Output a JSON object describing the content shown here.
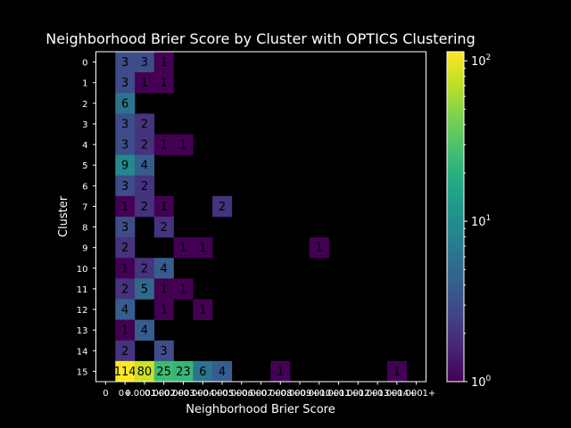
{
  "chart_data": {
    "type": "heatmap",
    "title": "Neighborhood Brier Score by Cluster with OPTICS Clustering",
    "xlabel": "Neighborhood Brier Score",
    "ylabel": "Cluster",
    "x_tick_labels": [
      "0",
      "0+",
      "0.0001+",
      "0.0002+",
      "0.0003+",
      "0.0004+",
      "0.0005+",
      "0.0006+",
      "0.0007+",
      "0.0008+",
      "0.0009+",
      "0.0010+",
      "0.0011+",
      "0.0012+",
      "0.0013+",
      "0.0014+",
      "0.0001+"
    ],
    "y_categories": [
      "0",
      "1",
      "2",
      "3",
      "4",
      "5",
      "6",
      "7",
      "8",
      "9",
      "10",
      "11",
      "12",
      "13",
      "14",
      "15"
    ],
    "cells": [
      {
        "row": 0,
        "col": 1,
        "value": 3
      },
      {
        "row": 0,
        "col": 2,
        "value": 3
      },
      {
        "row": 0,
        "col": 3,
        "value": 1
      },
      {
        "row": 1,
        "col": 1,
        "value": 3
      },
      {
        "row": 1,
        "col": 2,
        "value": 1
      },
      {
        "row": 1,
        "col": 3,
        "value": 1
      },
      {
        "row": 2,
        "col": 1,
        "value": 6
      },
      {
        "row": 3,
        "col": 1,
        "value": 3
      },
      {
        "row": 3,
        "col": 2,
        "value": 2
      },
      {
        "row": 4,
        "col": 1,
        "value": 3
      },
      {
        "row": 4,
        "col": 2,
        "value": 2
      },
      {
        "row": 4,
        "col": 3,
        "value": 1
      },
      {
        "row": 4,
        "col": 4,
        "value": 1
      },
      {
        "row": 5,
        "col": 1,
        "value": 9
      },
      {
        "row": 5,
        "col": 2,
        "value": 4
      },
      {
        "row": 6,
        "col": 1,
        "value": 3
      },
      {
        "row": 6,
        "col": 2,
        "value": 2
      },
      {
        "row": 7,
        "col": 1,
        "value": 1
      },
      {
        "row": 7,
        "col": 2,
        "value": 2
      },
      {
        "row": 7,
        "col": 3,
        "value": 1
      },
      {
        "row": 7,
        "col": 6,
        "value": 2
      },
      {
        "row": 8,
        "col": 1,
        "value": 3
      },
      {
        "row": 8,
        "col": 3,
        "value": 2
      },
      {
        "row": 9,
        "col": 1,
        "value": 2
      },
      {
        "row": 9,
        "col": 4,
        "value": 1
      },
      {
        "row": 9,
        "col": 5,
        "value": 1
      },
      {
        "row": 9,
        "col": 11,
        "value": 1
      },
      {
        "row": 10,
        "col": 1,
        "value": 1
      },
      {
        "row": 10,
        "col": 2,
        "value": 2
      },
      {
        "row": 10,
        "col": 3,
        "value": 4
      },
      {
        "row": 11,
        "col": 1,
        "value": 2
      },
      {
        "row": 11,
        "col": 2,
        "value": 5
      },
      {
        "row": 11,
        "col": 3,
        "value": 1
      },
      {
        "row": 11,
        "col": 4,
        "value": 1
      },
      {
        "row": 12,
        "col": 1,
        "value": 4
      },
      {
        "row": 12,
        "col": 3,
        "value": 1
      },
      {
        "row": 12,
        "col": 5,
        "value": 1
      },
      {
        "row": 13,
        "col": 1,
        "value": 1
      },
      {
        "row": 13,
        "col": 2,
        "value": 4
      },
      {
        "row": 14,
        "col": 1,
        "value": 2
      },
      {
        "row": 14,
        "col": 3,
        "value": 3
      },
      {
        "row": 15,
        "col": 1,
        "value": 114
      },
      {
        "row": 15,
        "col": 2,
        "value": 80
      },
      {
        "row": 15,
        "col": 3,
        "value": 25
      },
      {
        "row": 15,
        "col": 4,
        "value": 23
      },
      {
        "row": 15,
        "col": 5,
        "value": 6
      },
      {
        "row": 15,
        "col": 6,
        "value": 4
      },
      {
        "row": 15,
        "col": 9,
        "value": 1
      },
      {
        "row": 15,
        "col": 15,
        "value": 1
      }
    ],
    "colorbar": {
      "scale": "log",
      "range": [
        1,
        114
      ],
      "colormap": "viridis",
      "ticks": [
        {
          "base": "10",
          "exp": "0"
        },
        {
          "base": "10",
          "exp": "1"
        },
        {
          "base": "10",
          "exp": "2"
        }
      ]
    },
    "colors": {
      "background": "#000000",
      "text": "#ffffff"
    }
  }
}
